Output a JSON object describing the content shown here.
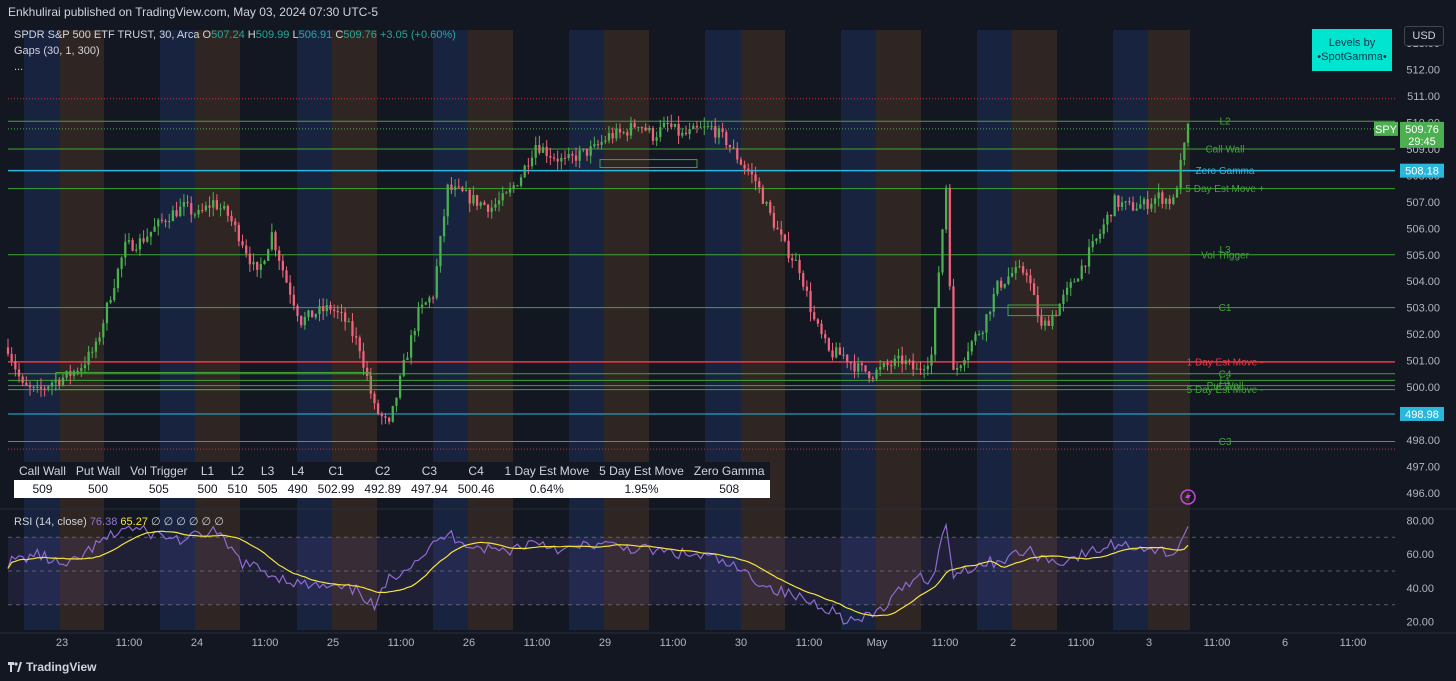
{
  "header": {
    "publisher_line": "Enkhulirai published on TradingView.com, May 03, 2024 07:30 UTC-5"
  },
  "legend": {
    "symbol": "SPDR S&P 500 ETF TRUST, 30, Arca",
    "o_label": "O",
    "o": "507.24",
    "h_label": "H",
    "h": "509.99",
    "l_label": "L",
    "l": "506.91",
    "c_label": "C",
    "c": "509.76",
    "change": "+3.05 (+0.60%)",
    "indicator": "Gaps (30, 1, 300)",
    "more": "..."
  },
  "currency_button": "USD",
  "badge": {
    "line1": "Levels by",
    "line2": "•SpotGamma•"
  },
  "colors": {
    "background": "#131722",
    "up": "#26a69a",
    "candle_up": "#4caf50",
    "candle_down": "#f0637a",
    "green_level": "#3fa535",
    "red_level": "#f23645",
    "cyan_level": "#2ab7dc",
    "blue_band": "#1b2a4a",
    "orange_band": "#3a2c24",
    "rsi": "#8f6bd2",
    "rsi_ma": "#f5e33b"
  },
  "price_axis": {
    "ticks": [
      "513.00",
      "512.00",
      "511.00",
      "510.00",
      "509.00",
      "508.00",
      "507.00",
      "506.00",
      "505.00",
      "504.00",
      "503.00",
      "502.00",
      "501.00",
      "500.00",
      "499.00",
      "498.00",
      "497.00",
      "496.00"
    ]
  },
  "price_tags": {
    "symbol": "SPY",
    "last": "509.76",
    "countdown": "29:45",
    "zero_gamma": "508.18",
    "low_level": "498.98"
  },
  "level_labels": [
    {
      "label": "L2",
      "price": 510.05,
      "color": "green"
    },
    {
      "label": "Call Wall",
      "price": 509.0,
      "color": "green"
    },
    {
      "label": "Zero Gamma",
      "price": 508.18,
      "color": "cyan"
    },
    {
      "label": "5 Day Est Move +",
      "price": 507.5,
      "color": "green"
    },
    {
      "label": "L3",
      "price": 505.2,
      "color": "green"
    },
    {
      "label": "Vol Trigger",
      "price": 505.0,
      "color": "green"
    },
    {
      "label": "C1",
      "price": 503.0,
      "color": "green"
    },
    {
      "label": "1 Day Est Move -",
      "price": 500.95,
      "color": "red"
    },
    {
      "label": "C4",
      "price": 500.5,
      "color": "green"
    },
    {
      "label": "L1",
      "price": 500.25,
      "color": "green"
    },
    {
      "label": "Put Wall",
      "price": 500.05,
      "color": "green"
    },
    {
      "label": "5 Day Est Move -",
      "price": 499.9,
      "color": "green"
    },
    {
      "label": "C3",
      "price": 497.94,
      "color": "green"
    }
  ],
  "levels_table": {
    "headers": [
      "Call Wall",
      "Put Wall",
      "Vol Trigger",
      "L1",
      "L2",
      "L3",
      "L4",
      "C1",
      "C2",
      "C3",
      "C4",
      "1 Day Est Move",
      "5 Day Est Move",
      "Zero Gamma"
    ],
    "values": [
      "509",
      "500",
      "505",
      "500",
      "510",
      "505",
      "490",
      "502.99",
      "492.89",
      "497.94",
      "500.46",
      "0.64%",
      "1.95%",
      "508"
    ]
  },
  "rsi": {
    "label": "RSI (14, close)",
    "value": "76.38",
    "ma_value": "65.27",
    "placeholders": "∅ ∅ ∅ ∅ ∅ ∅",
    "axis_ticks": [
      "80.00",
      "60.00",
      "40.00",
      "20.00"
    ]
  },
  "time_axis": {
    "labels": [
      "23",
      "11:00",
      "24",
      "11:00",
      "25",
      "11:00",
      "26",
      "11:00",
      "29",
      "11:00",
      "30",
      "11:00",
      "May",
      "11:00",
      "2",
      "11:00",
      "3",
      "11:00",
      "6",
      "11:00"
    ]
  },
  "footer": {
    "brand": "TradingView"
  },
  "chart_data": {
    "type": "candlestick",
    "title": "SPDR S&P 500 ETF TRUST, 30, Arca",
    "ylim": [
      495.5,
      513.5
    ],
    "rsi_ylim": [
      15,
      85
    ],
    "sessions": [
      "Apr 23",
      "Apr 24",
      "Apr 25",
      "Apr 26",
      "Apr 29",
      "Apr 30",
      "May 1",
      "May 2",
      "May 3"
    ],
    "close_path": [
      [
        0,
        501.5
      ],
      [
        4,
        500.0
      ],
      [
        8,
        499.8
      ],
      [
        12,
        500.2
      ],
      [
        16,
        500.4
      ],
      [
        20,
        500.8
      ],
      [
        24,
        501.5
      ],
      [
        28,
        503.5
      ],
      [
        32,
        505.3
      ],
      [
        36,
        505.5
      ],
      [
        40,
        506.0
      ],
      [
        44,
        506.5
      ],
      [
        48,
        506.8
      ],
      [
        52,
        506.5
      ],
      [
        56,
        507.0
      ],
      [
        60,
        506.5
      ],
      [
        64,
        505.5
      ],
      [
        68,
        504.2
      ],
      [
        72,
        505.8
      ],
      [
        76,
        504.0
      ],
      [
        80,
        502.5
      ],
      [
        84,
        502.8
      ],
      [
        88,
        503.0
      ],
      [
        92,
        502.5
      ],
      [
        96,
        501.5
      ],
      [
        100,
        499.2
      ],
      [
        104,
        498.5
      ],
      [
        108,
        500.8
      ],
      [
        112,
        502.8
      ],
      [
        116,
        503.5
      ],
      [
        120,
        507.5
      ],
      [
        124,
        507.3
      ],
      [
        128,
        507.0
      ],
      [
        132,
        506.8
      ],
      [
        136,
        507.2
      ],
      [
        140,
        508.0
      ],
      [
        144,
        509.2
      ],
      [
        148,
        508.8
      ],
      [
        152,
        508.5
      ],
      [
        156,
        508.8
      ],
      [
        160,
        509.0
      ],
      [
        164,
        509.5
      ],
      [
        168,
        509.6
      ],
      [
        172,
        510.0
      ],
      [
        176,
        509.5
      ],
      [
        180,
        509.9
      ],
      [
        184,
        509.5
      ],
      [
        188,
        509.7
      ],
      [
        192,
        509.8
      ],
      [
        196,
        509.3
      ],
      [
        200,
        508.5
      ],
      [
        204,
        507.8
      ],
      [
        208,
        506.5
      ],
      [
        212,
        505.3
      ],
      [
        216,
        504.5
      ],
      [
        220,
        502.5
      ],
      [
        224,
        501.3
      ],
      [
        228,
        501.2
      ],
      [
        232,
        500.7
      ],
      [
        236,
        500.5
      ],
      [
        240,
        500.8
      ],
      [
        244,
        501.0
      ],
      [
        248,
        500.6
      ],
      [
        252,
        501.2
      ],
      [
        256,
        507.6
      ],
      [
        258,
        500.5
      ],
      [
        262,
        501.5
      ],
      [
        266,
        502.3
      ],
      [
        270,
        503.8
      ],
      [
        274,
        504.3
      ],
      [
        278,
        504.4
      ],
      [
        282,
        502.2
      ],
      [
        286,
        502.9
      ],
      [
        290,
        503.8
      ],
      [
        294,
        504.8
      ],
      [
        298,
        505.8
      ],
      [
        302,
        507.0
      ],
      [
        306,
        506.8
      ],
      [
        310,
        506.9
      ],
      [
        314,
        507.2
      ],
      [
        318,
        507.0
      ],
      [
        322,
        509.76
      ]
    ],
    "rsi_path": [
      [
        0,
        55
      ],
      [
        8,
        60
      ],
      [
        16,
        52
      ],
      [
        24,
        65
      ],
      [
        32,
        76
      ],
      [
        40,
        72
      ],
      [
        48,
        68
      ],
      [
        56,
        74
      ],
      [
        64,
        55
      ],
      [
        72,
        48
      ],
      [
        80,
        42
      ],
      [
        88,
        40
      ],
      [
        96,
        38
      ],
      [
        100,
        28
      ],
      [
        104,
        45
      ],
      [
        112,
        58
      ],
      [
        120,
        72
      ],
      [
        128,
        64
      ],
      [
        136,
        62
      ],
      [
        144,
        68
      ],
      [
        152,
        62
      ],
      [
        160,
        66
      ],
      [
        168,
        64
      ],
      [
        176,
        62
      ],
      [
        184,
        60
      ],
      [
        192,
        58
      ],
      [
        200,
        50
      ],
      [
        208,
        40
      ],
      [
        216,
        34
      ],
      [
        224,
        28
      ],
      [
        228,
        22
      ],
      [
        232,
        20
      ],
      [
        236,
        24
      ],
      [
        240,
        30
      ],
      [
        244,
        40
      ],
      [
        248,
        48
      ],
      [
        252,
        44
      ],
      [
        256,
        78
      ],
      [
        258,
        48
      ],
      [
        262,
        52
      ],
      [
        270,
        56
      ],
      [
        278,
        62
      ],
      [
        286,
        55
      ],
      [
        294,
        60
      ],
      [
        302,
        66
      ],
      [
        310,
        64
      ],
      [
        318,
        60
      ],
      [
        322,
        76.38
      ]
    ]
  }
}
